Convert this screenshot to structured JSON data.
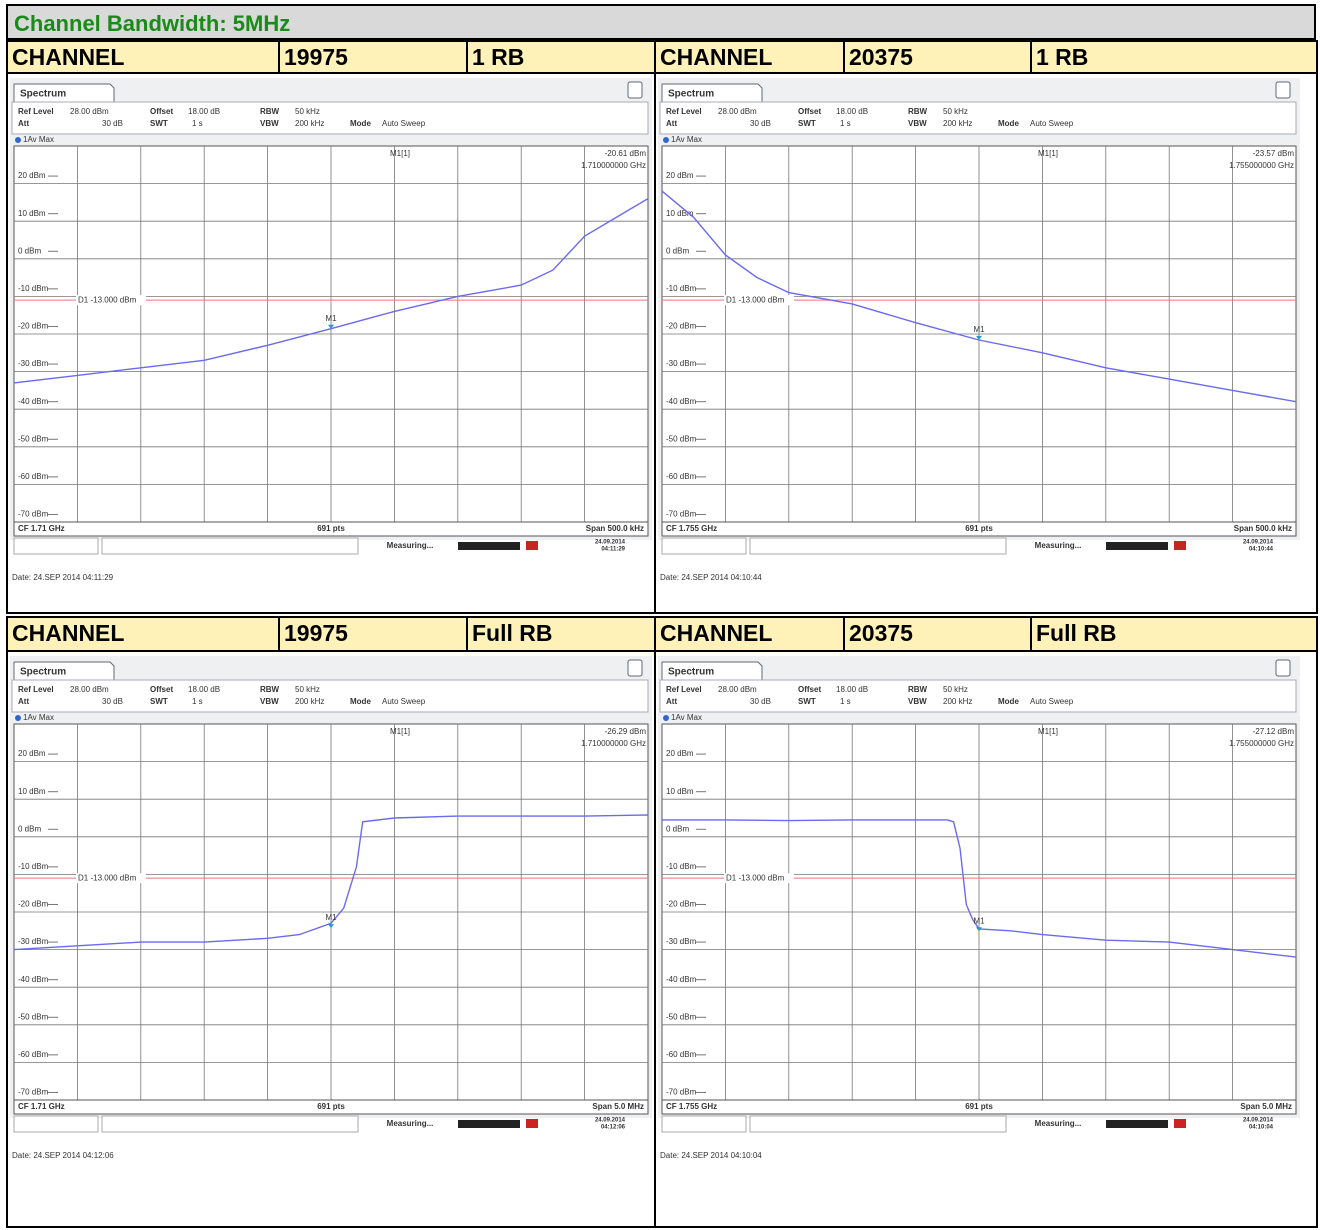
{
  "header": {
    "title": "Channel Bandwidth: 5MHz"
  },
  "rows": [
    {
      "cells": [
        "CHANNEL",
        "19975",
        "1 RB",
        "CHANNEL",
        "20375",
        "1 RB"
      ],
      "panels": [
        {
          "tab": "Spectrum",
          "settings": [
            {
              "k": "Ref Level",
              "v": "28.00 dBm"
            },
            {
              "k": "Offset",
              "v": "18.00 dB"
            },
            {
              "k": "RBW",
              "v": "50 kHz"
            },
            {
              "k": "Att",
              "v": "30 dB"
            },
            {
              "k": "SWT",
              "v": "1 s"
            },
            {
              "k": "VBW",
              "v": "200 kHz"
            },
            {
              "k": "Mode",
              "v": "Auto Sweep"
            }
          ],
          "trace_label": "1Av Max",
          "marker": {
            "name": "M1[1]",
            "tag": "M1",
            "x": 5,
            "value": -20.61,
            "value_label": "-20.61 dBm",
            "freq": "1.710000000 GHz"
          },
          "limit": {
            "label": "D1 -13.000 dBm",
            "value": -13
          },
          "xlim": [
            0,
            10
          ],
          "ylim": [
            -72,
            28
          ],
          "yticks": [
            {
              "value": 20,
              "label": "20 dBm"
            },
            {
              "value": 10,
              "label": "10 dBm"
            },
            {
              "value": 0,
              "label": "0 dBm"
            },
            {
              "value": -10,
              "label": "-10 dBm"
            },
            {
              "value": -20,
              "label": "-20 dBm"
            },
            {
              "value": -30,
              "label": "-30 dBm"
            },
            {
              "value": -40,
              "label": "-40 dBm"
            },
            {
              "value": -50,
              "label": "-50 dBm"
            },
            {
              "value": -60,
              "label": "-60 dBm"
            },
            {
              "value": -70,
              "label": "-70 dBm"
            }
          ],
          "trace": {
            "x": [
              0,
              1,
              2,
              3,
              4,
              5,
              6,
              7,
              8,
              8.5,
              9,
              9.5,
              10
            ],
            "values": [
              -35,
              -33,
              -31,
              -29,
              -25,
              -20.6,
              -16,
              -12,
              -9,
              -5,
              4,
              9,
              14
            ]
          },
          "footer": [
            "CF 1.71 GHz",
            "691 pts",
            "Span 500.0 kHz"
          ],
          "status": "Measuring...",
          "stamp": [
            "24.09.2014",
            "04:11:29"
          ],
          "date": "Date: 24.SEP 2014 04:11:29"
        },
        {
          "tab": "Spectrum",
          "settings": [
            {
              "k": "Ref Level",
              "v": "28.00 dBm"
            },
            {
              "k": "Offset",
              "v": "18.00 dB"
            },
            {
              "k": "RBW",
              "v": "50 kHz"
            },
            {
              "k": "Att",
              "v": "30 dB"
            },
            {
              "k": "SWT",
              "v": "1 s"
            },
            {
              "k": "VBW",
              "v": "200 kHz"
            },
            {
              "k": "Mode",
              "v": "Auto Sweep"
            }
          ],
          "trace_label": "1Av Max",
          "marker": {
            "name": "M1[1]",
            "tag": "M1",
            "x": 5,
            "value": -23.57,
            "value_label": "-23.57 dBm",
            "freq": "1.755000000 GHz"
          },
          "limit": {
            "label": "D1 -13.000 dBm",
            "value": -13
          },
          "xlim": [
            0,
            10
          ],
          "ylim": [
            -72,
            28
          ],
          "yticks": [
            {
              "value": 20,
              "label": "20 dBm"
            },
            {
              "value": 10,
              "label": "10 dBm"
            },
            {
              "value": 0,
              "label": "0 dBm"
            },
            {
              "value": -10,
              "label": "-10 dBm"
            },
            {
              "value": -20,
              "label": "-20 dBm"
            },
            {
              "value": -30,
              "label": "-30 dBm"
            },
            {
              "value": -40,
              "label": "-40 dBm"
            },
            {
              "value": -50,
              "label": "-50 dBm"
            },
            {
              "value": -60,
              "label": "-60 dBm"
            },
            {
              "value": -70,
              "label": "-70 dBm"
            }
          ],
          "trace": {
            "x": [
              0,
              0.5,
              1,
              1.5,
              2,
              3,
              4,
              5,
              6,
              7,
              8,
              9,
              10
            ],
            "values": [
              16,
              9,
              -1,
              -7,
              -11,
              -14,
              -19,
              -23.6,
              -27,
              -31,
              -34,
              -37,
              -40
            ]
          },
          "footer": [
            "CF 1.755 GHz",
            "691 pts",
            "Span 500.0 kHz"
          ],
          "status": "Measuring...",
          "stamp": [
            "24.09.2014",
            "04:10:44"
          ],
          "date": "Date: 24.SEP 2014 04:10:44"
        }
      ]
    },
    {
      "cells": [
        "CHANNEL",
        "19975",
        "Full RB",
        "CHANNEL",
        "20375",
        "Full RB"
      ],
      "panels": [
        {
          "tab": "Spectrum",
          "settings": [
            {
              "k": "Ref Level",
              "v": "28.00 dBm"
            },
            {
              "k": "Offset",
              "v": "18.00 dB"
            },
            {
              "k": "RBW",
              "v": "50 kHz"
            },
            {
              "k": "Att",
              "v": "30 dB"
            },
            {
              "k": "SWT",
              "v": "1 s"
            },
            {
              "k": "VBW",
              "v": "200 kHz"
            },
            {
              "k": "Mode",
              "v": "Auto Sweep"
            }
          ],
          "trace_label": "1Av Max",
          "marker": {
            "name": "M1[1]",
            "tag": "M1",
            "x": 5,
            "value": -26.29,
            "value_label": "-26.29 dBm",
            "freq": "1.710000000 GHz"
          },
          "limit": {
            "label": "D1 -13.000 dBm",
            "value": -13
          },
          "xlim": [
            0,
            10
          ],
          "ylim": [
            -72,
            28
          ],
          "yticks": [
            {
              "value": 20,
              "label": "20 dBm"
            },
            {
              "value": 10,
              "label": "10 dBm"
            },
            {
              "value": 0,
              "label": "0 dBm"
            },
            {
              "value": -10,
              "label": "-10 dBm"
            },
            {
              "value": -20,
              "label": "-20 dBm"
            },
            {
              "value": -30,
              "label": "-30 dBm"
            },
            {
              "value": -40,
              "label": "-40 dBm"
            },
            {
              "value": -50,
              "label": "-50 dBm"
            },
            {
              "value": -60,
              "label": "-60 dBm"
            },
            {
              "value": -70,
              "label": "-70 dBm"
            }
          ],
          "trace": {
            "x": [
              0,
              1,
              2,
              3,
              4,
              4.5,
              5,
              5.2,
              5.4,
              5.5,
              6,
              7,
              8,
              9,
              10
            ],
            "values": [
              -32,
              -31,
              -30,
              -30,
              -29,
              -28,
              -25,
              -21,
              -10,
              2,
              3,
              3.5,
              3.5,
              3.5,
              3.8
            ]
          },
          "footer": [
            "CF 1.71 GHz",
            "691 pts",
            "Span 5.0 MHz"
          ],
          "status": "Measuring...",
          "stamp": [
            "24.09.2014",
            "04:12:06"
          ],
          "date": "Date: 24.SEP 2014 04:12:06"
        },
        {
          "tab": "Spectrum",
          "settings": [
            {
              "k": "Ref Level",
              "v": "28.00 dBm"
            },
            {
              "k": "Offset",
              "v": "18.00 dB"
            },
            {
              "k": "RBW",
              "v": "50 kHz"
            },
            {
              "k": "Att",
              "v": "30 dB"
            },
            {
              "k": "SWT",
              "v": "1 s"
            },
            {
              "k": "VBW",
              "v": "200 kHz"
            },
            {
              "k": "Mode",
              "v": "Auto Sweep"
            }
          ],
          "trace_label": "1Av Max",
          "marker": {
            "name": "M1[1]",
            "tag": "M1",
            "x": 5,
            "value": -27.12,
            "value_label": "-27.12 dBm",
            "freq": "1.755000000 GHz"
          },
          "limit": {
            "label": "D1 -13.000 dBm",
            "value": -13
          },
          "xlim": [
            0,
            10
          ],
          "ylim": [
            -72,
            28
          ],
          "yticks": [
            {
              "value": 20,
              "label": "20 dBm"
            },
            {
              "value": 10,
              "label": "10 dBm"
            },
            {
              "value": 0,
              "label": "0 dBm"
            },
            {
              "value": -10,
              "label": "-10 dBm"
            },
            {
              "value": -20,
              "label": "-20 dBm"
            },
            {
              "value": -30,
              "label": "-30 dBm"
            },
            {
              "value": -40,
              "label": "-40 dBm"
            },
            {
              "value": -50,
              "label": "-50 dBm"
            },
            {
              "value": -60,
              "label": "-60 dBm"
            },
            {
              "value": -70,
              "label": "-70 dBm"
            }
          ],
          "trace": {
            "x": [
              0,
              1,
              2,
              3,
              4,
              4.5,
              4.6,
              4.7,
              4.8,
              4.9,
              5,
              5.5,
              6,
              7,
              8,
              9,
              10
            ],
            "values": [
              2.5,
              2.5,
              2.3,
              2.5,
              2.5,
              2.5,
              2,
              -5,
              -20,
              -24,
              -26.5,
              -27,
              -28,
              -29.5,
              -30,
              -32,
              -34
            ]
          },
          "footer": [
            "CF 1.755 GHz",
            "691 pts",
            "Span 5.0 MHz"
          ],
          "status": "Measuring...",
          "stamp": [
            "24.09.2014",
            "04:10:04"
          ],
          "date": "Date: 24.SEP 2014 04:10:04"
        }
      ]
    }
  ]
}
